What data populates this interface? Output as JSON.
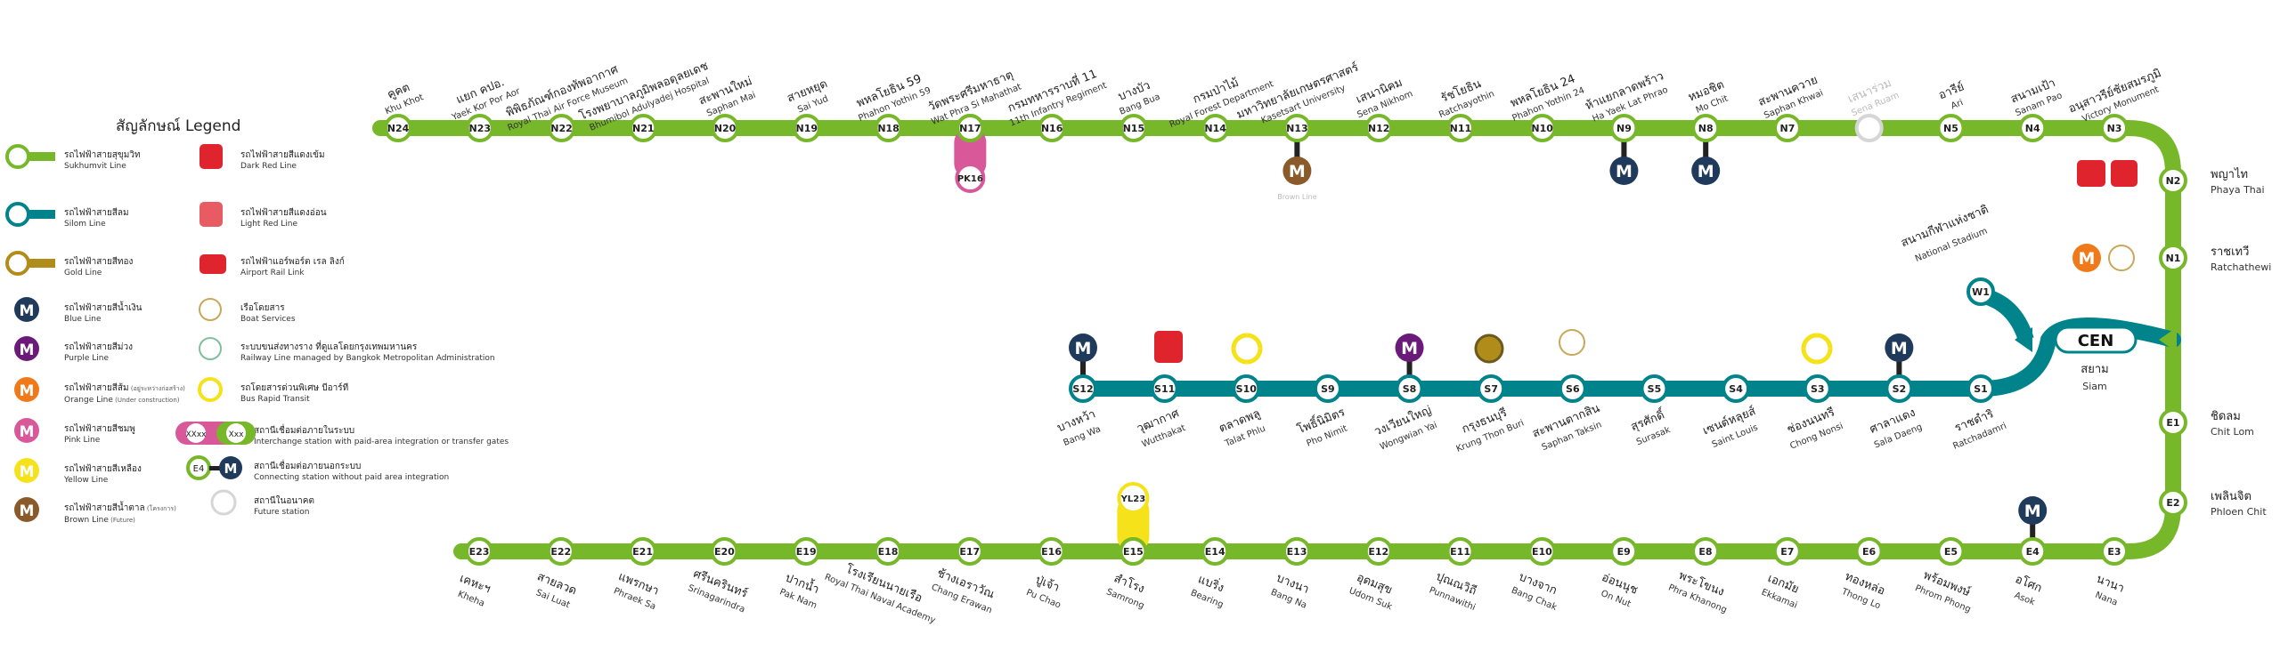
{
  "colors": {
    "sukhumvit": "#77b82a",
    "silom": "#00838a",
    "gold": "#b08d1a",
    "blue": "#1f3a5a",
    "purple": "#6a1b7a",
    "orange": "#f07a1a",
    "pink": "#d8589a",
    "yellow": "#f5e21b",
    "brown": "#8a5a2b",
    "red": "#e0242e",
    "future": "#d6d6d6"
  },
  "legend": {
    "title": "สัญลักษณ์ Legend",
    "items": [
      {
        "th": "รถไฟฟ้าสายสุขุมวิท",
        "en": "Sukhumvit Line",
        "icon": "sukhumvit-line-icon"
      },
      {
        "th": "รถไฟฟ้าสายสีลม",
        "en": "Silom Line",
        "icon": "silom-line-icon"
      },
      {
        "th": "รถไฟฟ้าสายสีทอง",
        "en": "Gold Line",
        "icon": "gold-line-icon"
      },
      {
        "th": "รถไฟฟ้าสายสีน้ำเงิน",
        "en": "Blue Line",
        "icon": "blue-line-m-icon"
      },
      {
        "th": "รถไฟฟ้าสายสีม่วง",
        "en": "Purple Line",
        "icon": "purple-line-m-icon"
      },
      {
        "th": "รถไฟฟ้าสายสีส้ม",
        "note": "(อยู่ระหว่างก่อสร้าง)",
        "en": "Orange Line",
        "en_note": "(Under construction)",
        "icon": "orange-line-m-icon"
      },
      {
        "th": "รถไฟฟ้าสายสีชมพู",
        "en": "Pink Line",
        "icon": "pink-line-m-icon"
      },
      {
        "th": "รถไฟฟ้าสายสีเหลือง",
        "en": "Yellow Line",
        "icon": "yellow-line-m-icon"
      },
      {
        "th": "รถไฟฟ้าสายสีน้ำตาล",
        "note": "(โครงการ)",
        "en": "Brown Line",
        "en_note": "(Future)",
        "icon": "brown-line-m-icon"
      },
      {
        "th": "รถไฟฟ้าสายสีแดงเข้ม",
        "en": "Dark Red Line",
        "icon": "dark-red-train-icon"
      },
      {
        "th": "รถไฟฟ้าสายสีแดงอ่อน",
        "en": "Light Red Line",
        "icon": "light-red-train-icon"
      },
      {
        "th": "รถไฟฟ้าแอร์พอร์ต เรล ลิงก์",
        "en": "Airport Rail Link",
        "icon": "airport-rail-link-icon"
      },
      {
        "th": "เรือโดยสาร",
        "en": "Boat Services",
        "icon": "boat-services-icon"
      },
      {
        "th": "ระบบขนส่งทางราง ที่ดูแลโดยกรุงเทพมหานคร",
        "en": "Railway Line managed by Bangkok Metropolitan Administration",
        "icon": "bma-railway-icon"
      },
      {
        "th": "รถโดยสารด่วนพิเศษ บีอาร์ที",
        "en": "Bus Rapid Transit",
        "icon": "brt-icon"
      },
      {
        "th": "สถานีเชื่อมต่อภายในระบบ",
        "en": "Interchange station with paid-area integration or transfer gates",
        "icon": "interchange-icon",
        "sample_a": "XXxx",
        "sample_b": "Xxx"
      },
      {
        "th": "สถานีเชื่อมต่อภายนอกระบบ",
        "en": "Connecting station without paid area integration",
        "icon": "connecting-icon",
        "sample": "E4"
      },
      {
        "th": "สถานีในอนาคต",
        "en": "Future station",
        "icon": "future-station-icon"
      }
    ]
  },
  "central": {
    "code": "CEN",
    "th": "สยาม",
    "en": "Siam"
  },
  "north": [
    {
      "code": "N24",
      "th": "คูคต",
      "en": "Khu Khot"
    },
    {
      "code": "N23",
      "th": "แยก คปอ.",
      "en": "Yaek Kor Por Aor"
    },
    {
      "code": "N22",
      "th": "พิพิธภัณฑ์กองทัพอากาศ",
      "en": "Royal Thai Air Force Museum"
    },
    {
      "code": "N21",
      "th": "โรงพยาบาลภูมิพลอดุลยเดช",
      "en": "Bhumibol Adulyadej Hospital"
    },
    {
      "code": "N20",
      "th": "สะพานใหม่",
      "en": "Saphan Mai"
    },
    {
      "code": "N19",
      "th": "สายหยุด",
      "en": "Sai Yud"
    },
    {
      "code": "N18",
      "th": "พหลโยธิน 59",
      "en": "Phahon Yothin 59"
    },
    {
      "code": "N17",
      "th": "วัดพระศรีมหาธาตุ",
      "en": "Wat Phra Si Mahathat",
      "conn": "PK16"
    },
    {
      "code": "N16",
      "th": "กรมทหารราบที่ 11",
      "en": "11th Infantry Regiment"
    },
    {
      "code": "N15",
      "th": "บางบัว",
      "en": "Bang Bua"
    },
    {
      "code": "N14",
      "th": "กรมป่าไม้",
      "en": "Royal Forest Department"
    },
    {
      "code": "N13",
      "th": "มหาวิทยาลัยเกษตรศาสตร์",
      "en": "Kasetsart University",
      "conn_m": "brown",
      "conn_note": "Brown Line"
    },
    {
      "code": "N12",
      "th": "เสนานิคม",
      "en": "Sena Nikhom"
    },
    {
      "code": "N11",
      "th": "รัชโยธิน",
      "en": "Ratchayothin"
    },
    {
      "code": "N10",
      "th": "พหลโยธิน 24",
      "en": "Phahon Yothin 24"
    },
    {
      "code": "N9",
      "th": "ห้าแยกลาดพร้าว",
      "en": "Ha Yaek Lat Phrao",
      "conn_m": "blue"
    },
    {
      "code": "N8",
      "th": "หมอชิต",
      "en": "Mo Chit",
      "conn_m": "blue"
    },
    {
      "code": "N7",
      "th": "สะพานควาย",
      "en": "Saphan Khwai"
    },
    {
      "code": "",
      "th": "เสนาร่วม",
      "en": "Sena Ruam",
      "future": true
    },
    {
      "code": "N5",
      "th": "อารีย์",
      "en": "Ari"
    },
    {
      "code": "N4",
      "th": "สนามเป้า",
      "en": "Sanam Pao"
    },
    {
      "code": "N3",
      "th": "อนุสาวรีย์ชัยสมรภูมิ",
      "en": "Victory Monument"
    }
  ],
  "north_right": [
    {
      "code": "N2",
      "th": "พญาไท",
      "en": "Phaya Thai"
    },
    {
      "code": "N1",
      "th": "ราชเทวี",
      "en": "Ratchathewi"
    }
  ],
  "east_right": [
    {
      "code": "E1",
      "th": "ชิดลม",
      "en": "Chit Lom"
    },
    {
      "code": "E2",
      "th": "เพลินจิต",
      "en": "Phloen Chit"
    }
  ],
  "east": [
    {
      "code": "E23",
      "th": "เคหะฯ",
      "en": "Kheha"
    },
    {
      "code": "E22",
      "th": "สายลวด",
      "en": "Sai Luat"
    },
    {
      "code": "E21",
      "th": "แพรกษา",
      "en": "Phraek Sa"
    },
    {
      "code": "E20",
      "th": "ศรีนครินทร์",
      "en": "Srinagarindra"
    },
    {
      "code": "E19",
      "th": "ปากน้ำ",
      "en": "Pak Nam"
    },
    {
      "code": "E18",
      "th": "โรงเรียนนายเรือ",
      "en": "Royal Thai Naval Academy"
    },
    {
      "code": "E17",
      "th": "ช้างเอราวัณ",
      "en": "Chang Erawan"
    },
    {
      "code": "E16",
      "th": "ปู่เจ้า",
      "en": "Pu Chao"
    },
    {
      "code": "E15",
      "th": "สำโรง",
      "en": "Samrong",
      "conn": "YL23"
    },
    {
      "code": "E14",
      "th": "แบริ่ง",
      "en": "Bearing"
    },
    {
      "code": "E13",
      "th": "บางนา",
      "en": "Bang Na"
    },
    {
      "code": "E12",
      "th": "อุดมสุข",
      "en": "Udom Suk"
    },
    {
      "code": "E11",
      "th": "ปุณณวิถี",
      "en": "Punnawithi"
    },
    {
      "code": "E10",
      "th": "บางจาก",
      "en": "Bang Chak"
    },
    {
      "code": "E9",
      "th": "อ่อนนุช",
      "en": "On Nut"
    },
    {
      "code": "E8",
      "th": "พระโขนง",
      "en": "Phra Khanong"
    },
    {
      "code": "E7",
      "th": "เอกมัย",
      "en": "Ekkamai"
    },
    {
      "code": "E6",
      "th": "ทองหล่อ",
      "en": "Thong Lo"
    },
    {
      "code": "E5",
      "th": "พร้อมพงษ์",
      "en": "Phrom Phong"
    },
    {
      "code": "E4",
      "th": "อโศก",
      "en": "Asok",
      "conn_m": "blue"
    },
    {
      "code": "E3",
      "th": "นานา",
      "en": "Nana"
    }
  ],
  "silom": [
    {
      "code": "S12",
      "th": "บางหว้า",
      "en": "Bang Wa",
      "conn_m": "blue"
    },
    {
      "code": "S11",
      "th": "วุฒากาศ",
      "en": "Wutthakat"
    },
    {
      "code": "S10",
      "th": "ตลาดพลู",
      "en": "Talat Phlu"
    },
    {
      "code": "S9",
      "th": "โพธิ์นิมิตร",
      "en": "Pho Nimit"
    },
    {
      "code": "S8",
      "th": "วงเวียนใหญ่",
      "en": "Wongwian Yai",
      "conn_m": "purple"
    },
    {
      "code": "S7",
      "th": "กรุงธนบุรี",
      "en": "Krung Thon Buri"
    },
    {
      "code": "S6",
      "th": "สะพานตากสิน",
      "en": "Saphan Taksin"
    },
    {
      "code": "S5",
      "th": "สุรศักดิ์",
      "en": "Surasak"
    },
    {
      "code": "S4",
      "th": "เซนต์หลุยส์",
      "en": "Saint Louis"
    },
    {
      "code": "S3",
      "th": "ช่องนนทรี",
      "en": "Chong Nonsi"
    },
    {
      "code": "S2",
      "th": "ศาลาแดง",
      "en": "Sala Daeng",
      "conn_m": "blue"
    },
    {
      "code": "S1",
      "th": "ราชดำริ",
      "en": "Ratchadamri"
    }
  ],
  "w1": {
    "code": "W1",
    "th": "สนามกีฬาแห่งชาติ",
    "en": "National Stadium"
  }
}
